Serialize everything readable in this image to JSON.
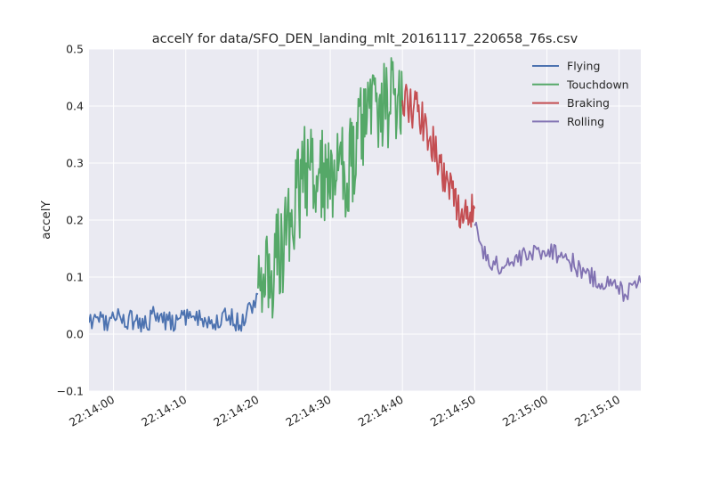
{
  "chart_data": {
    "type": "line",
    "title": "accelY for data/SFO_DEN_landing_mlt_20161117_220658_76s.csv",
    "xlabel": "",
    "ylabel": "accelY",
    "ylim": [
      -0.1,
      0.5
    ],
    "yticks": [
      "−0.1",
      "0.0",
      "0.1",
      "0.2",
      "0.3",
      "0.4",
      "0.5"
    ],
    "xlim": [
      "22:13:56.6",
      "22:15:13.0"
    ],
    "xticks": [
      "22:14:00",
      "22:14:10",
      "22:14:20",
      "22:14:30",
      "22:14:40",
      "22:14:50",
      "22:15:00",
      "22:15:10"
    ],
    "grid": true,
    "legend_position": "top-right",
    "series": [
      {
        "name": "Flying",
        "color": "#4c72b0",
        "x": [
          "22:13:56.6",
          "22:13:58.0",
          "22:13:59.5",
          "22:14:01.0",
          "22:14:02.5",
          "22:14:04.0",
          "22:14:05.5",
          "22:14:07.0",
          "22:14:08.5",
          "22:14:10.0",
          "22:14:11.5",
          "22:14:13.0",
          "22:14:14.5",
          "22:14:16.0",
          "22:14:17.5",
          "22:14:19.0",
          "22:14:20.0"
        ],
        "y": [
          0.02,
          0.025,
          0.02,
          0.03,
          0.025,
          0.015,
          0.03,
          0.025,
          0.02,
          0.03,
          0.035,
          0.02,
          0.025,
          0.03,
          0.02,
          0.045,
          0.07
        ],
        "noise": 0.018,
        "points_per_unit": 5
      },
      {
        "name": "Touchdown",
        "color": "#55a868",
        "x": [
          "22:14:20.0",
          "22:14:21.0",
          "22:14:22.0",
          "22:14:23.0",
          "22:14:24.0",
          "22:14:25.0",
          "22:14:26.0",
          "22:14:27.0",
          "22:14:28.0",
          "22:14:29.0",
          "22:14:30.0",
          "22:14:31.0",
          "22:14:32.0",
          "22:14:33.0",
          "22:14:34.0",
          "22:14:35.0",
          "22:14:36.0",
          "22:14:37.0",
          "22:14:38.0",
          "22:14:39.0",
          "22:14:40.0"
        ],
        "y": [
          0.08,
          0.09,
          0.1,
          0.14,
          0.17,
          0.2,
          0.27,
          0.3,
          0.3,
          0.28,
          0.27,
          0.28,
          0.28,
          0.3,
          0.34,
          0.36,
          0.38,
          0.4,
          0.4,
          0.39,
          0.4
        ],
        "noise": 0.09,
        "points_per_unit": 9
      },
      {
        "name": "Braking",
        "color": "#c44e52",
        "x": [
          "22:14:40.0",
          "22:14:41.0",
          "22:14:42.0",
          "22:14:43.0",
          "22:14:44.0",
          "22:14:45.0",
          "22:14:46.0",
          "22:14:47.0",
          "22:14:48.0",
          "22:14:49.0",
          "22:14:50.0"
        ],
        "y": [
          0.41,
          0.4,
          0.39,
          0.37,
          0.34,
          0.31,
          0.27,
          0.24,
          0.22,
          0.21,
          0.22
        ],
        "noise": 0.035,
        "points_per_unit": 8
      },
      {
        "name": "Rolling",
        "color": "#8172b2",
        "x": [
          "22:14:50.0",
          "22:14:51.0",
          "22:14:52.0",
          "22:14:53.0",
          "22:14:54.0",
          "22:14:56.0",
          "22:14:58.0",
          "22:15:00.0",
          "22:15:02.0",
          "22:15:04.0",
          "22:15:06.0",
          "22:15:08.0",
          "22:15:10.0",
          "22:15:11.0",
          "22:15:12.0",
          "22:15:13.0"
        ],
        "y": [
          0.19,
          0.15,
          0.13,
          0.12,
          0.12,
          0.13,
          0.14,
          0.15,
          0.14,
          0.12,
          0.1,
          0.09,
          0.08,
          0.07,
          0.1,
          0.09
        ],
        "noise": 0.018,
        "points_per_unit": 5
      }
    ]
  }
}
